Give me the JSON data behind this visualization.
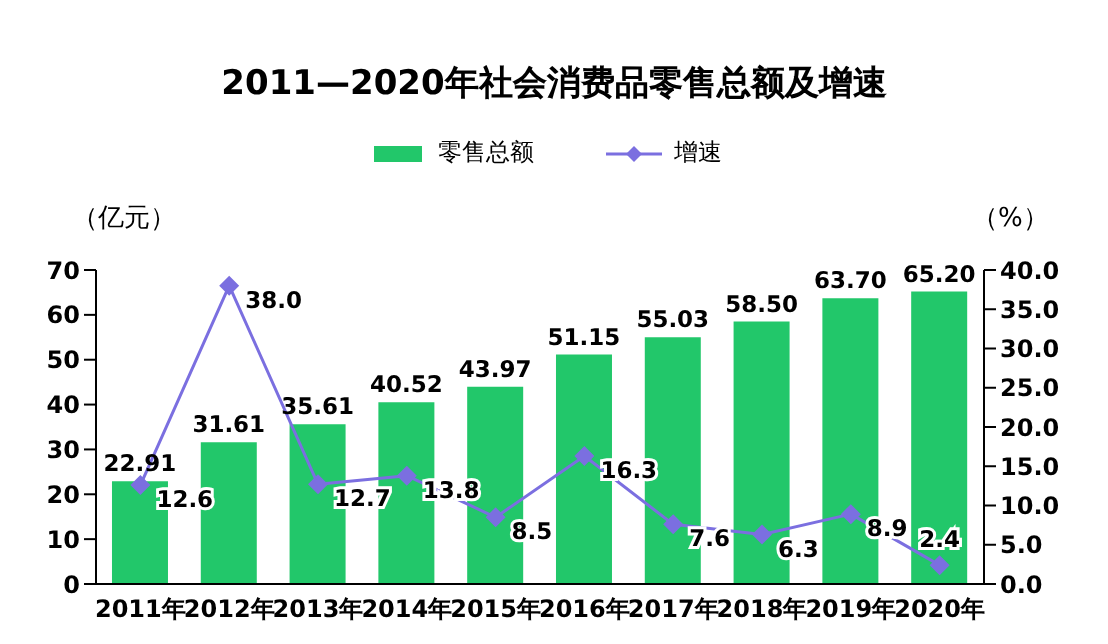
{
  "chart_data": {
    "type": "bar",
    "title": "2011—2020年社会消费品零售总额及增速",
    "ylabel": "（亿元）",
    "y2label": "（%）",
    "categories": [
      "2011年",
      "2012年",
      "2013年",
      "2014年",
      "2015年",
      "2016年",
      "2017年",
      "2018年",
      "2019年",
      "2020年"
    ],
    "series": [
      {
        "name": "零售总额",
        "color": "#22c76a",
        "values": [
          22.91,
          31.61,
          35.61,
          40.52,
          43.97,
          51.15,
          55.03,
          58.5,
          63.7,
          65.2
        ],
        "value_labels": [
          "22.91",
          "31.61",
          "35.61",
          "40.52",
          "43.97",
          "51.15",
          "55.03",
          "58.50",
          "63.70",
          "65.20"
        ]
      },
      {
        "name": "增速",
        "type": "line",
        "axis": "y2",
        "color": "#7b6fe0",
        "marker": "diamond",
        "values": [
          12.6,
          38.0,
          12.7,
          13.8,
          8.5,
          16.3,
          7.6,
          6.3,
          8.9,
          2.4
        ],
        "value_labels": [
          "12.6",
          "38.0",
          "12.7",
          "13.8",
          "8.5",
          "16.3",
          "7.6",
          "6.3",
          "8.9",
          "2.4"
        ]
      }
    ],
    "ylim": [
      0,
      70
    ],
    "yticks": [
      0,
      10,
      20,
      30,
      40,
      50,
      60,
      70
    ],
    "y2lim": [
      0,
      40
    ],
    "y2ticks": [
      {
        "value": 0,
        "label": "0.0"
      },
      {
        "value": 5,
        "label": "5.0"
      },
      {
        "value": 10,
        "label": "10.0"
      },
      {
        "value": 15,
        "label": "15.0"
      },
      {
        "value": 20,
        "label": "20.0"
      },
      {
        "value": 25,
        "label": "25.0"
      },
      {
        "value": 30,
        "label": "30.0"
      },
      {
        "value": 35,
        "label": "35.0"
      },
      {
        "value": 40,
        "label": "40.0"
      }
    ],
    "legend": "top",
    "grid": false
  }
}
